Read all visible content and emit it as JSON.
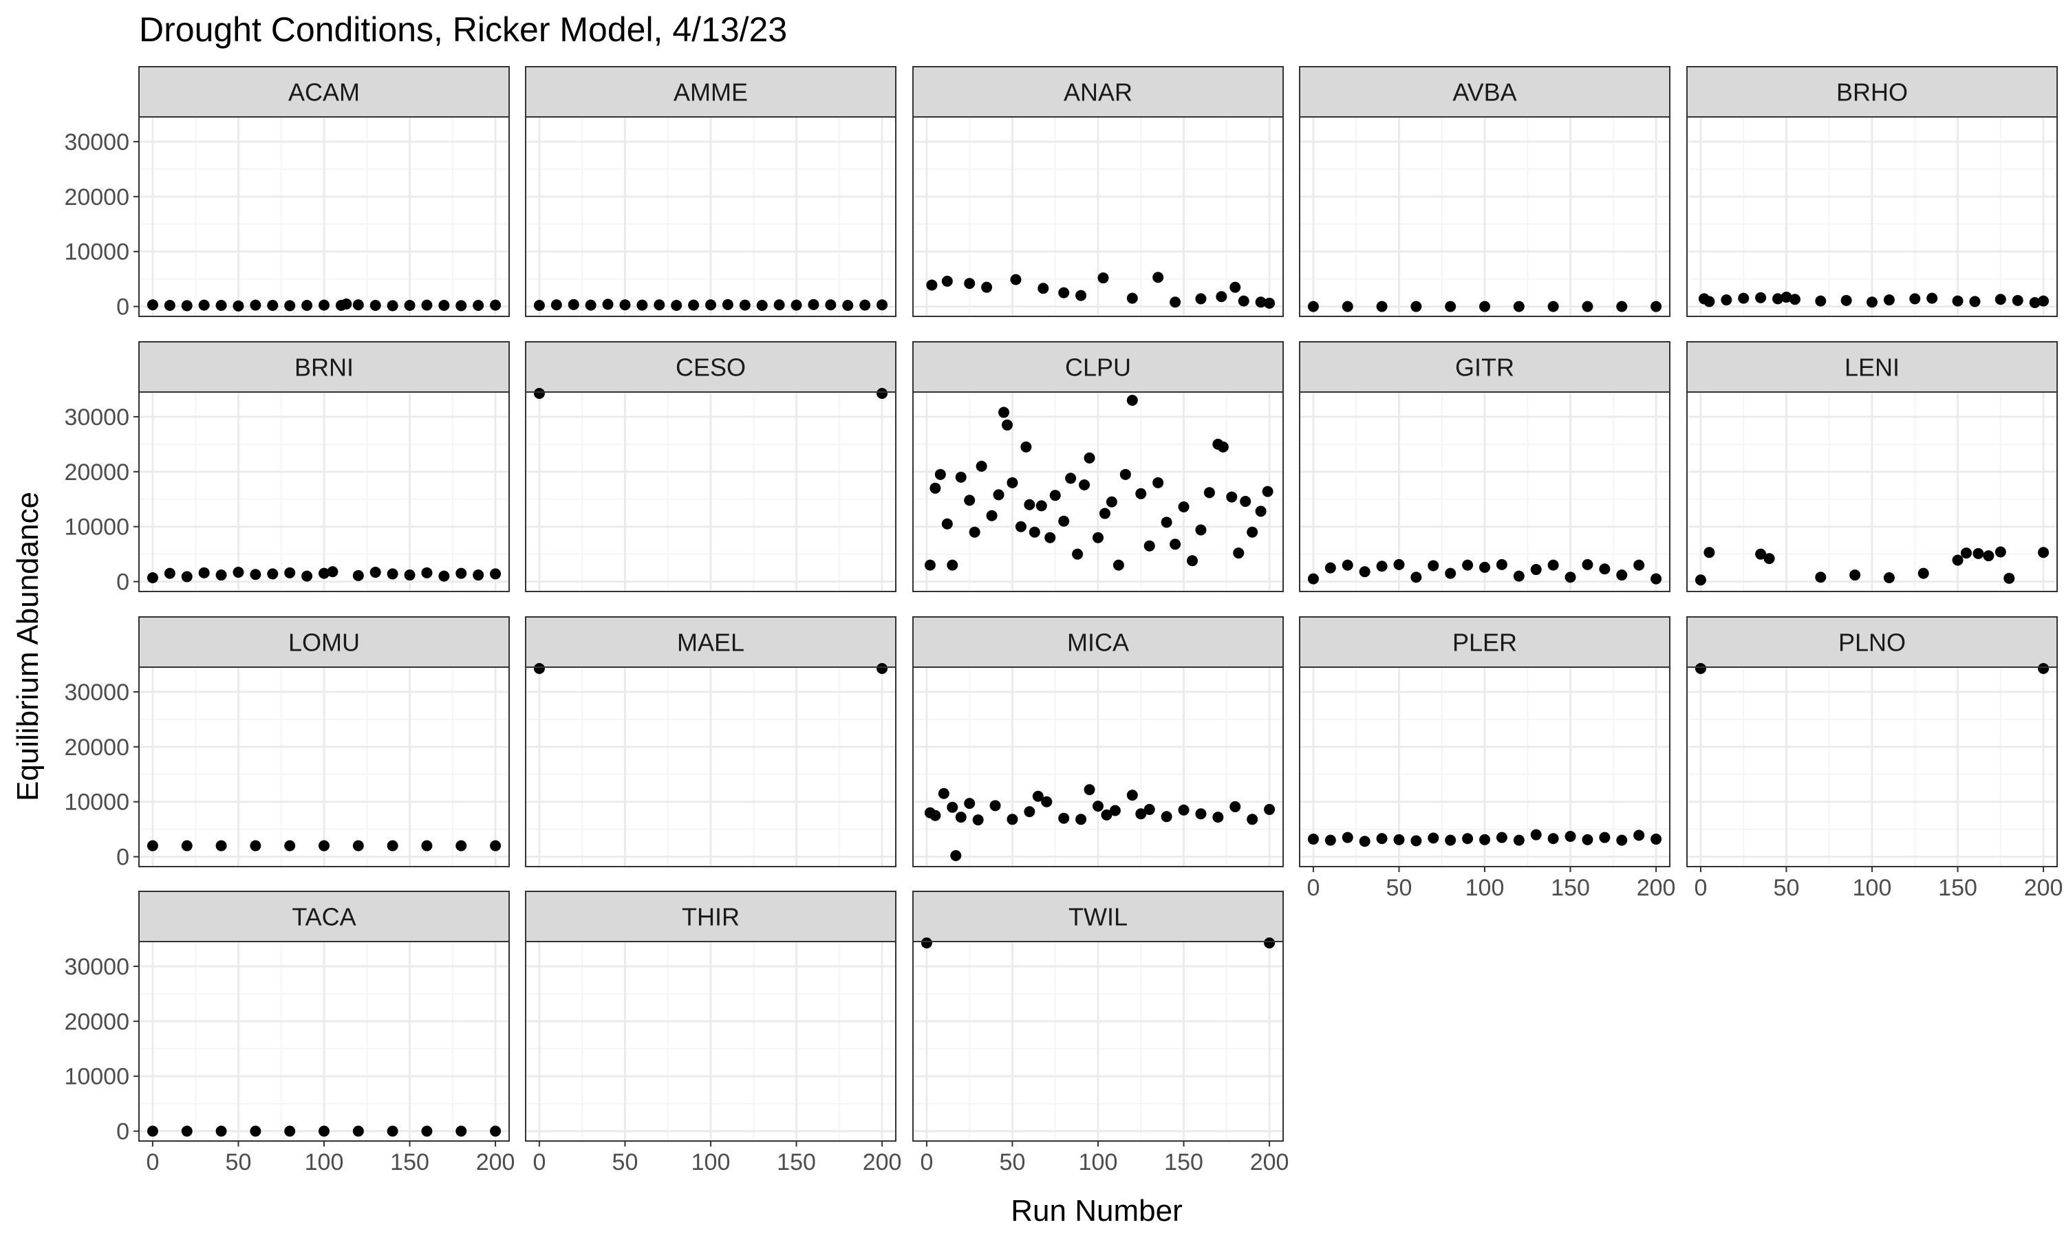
{
  "chart_data": {
    "type": "scatter",
    "title": "Drought Conditions, Ricker Model, 4/13/23",
    "xlabel": "Run Number",
    "ylabel": "Equilibrium Abundance",
    "xlim": [
      -8,
      208
    ],
    "ylim": [
      -1800,
      34500
    ],
    "x_ticks": [
      0,
      50,
      100,
      150,
      200
    ],
    "x_tick_labels": [
      "0",
      "50",
      "100",
      "150",
      "200"
    ],
    "y_ticks": [
      0,
      10000,
      20000,
      30000
    ],
    "y_tick_labels": [
      "0",
      "10000",
      "20000",
      "30000"
    ],
    "grid": true,
    "facet_layout": {
      "ncol": 5,
      "nrow": 4
    },
    "colors": {
      "point": "#000000",
      "strip_fill": "#d9d9d9",
      "panel_border": "#333333",
      "grid_major": "#ebebeb",
      "grid_minor": "#f5f5f5"
    },
    "panels": [
      {
        "label": "ACAM",
        "x": [
          0,
          10,
          20,
          30,
          40,
          50,
          60,
          70,
          80,
          90,
          100,
          110,
          113,
          120,
          130,
          140,
          150,
          160,
          170,
          180,
          190,
          200
        ],
        "y": [
          300,
          200,
          150,
          250,
          200,
          100,
          250,
          200,
          150,
          200,
          250,
          200,
          450,
          300,
          200,
          150,
          200,
          250,
          200,
          150,
          200,
          250
        ]
      },
      {
        "label": "AMME",
        "x": [
          0,
          10,
          20,
          30,
          40,
          50,
          60,
          70,
          80,
          90,
          100,
          110,
          120,
          130,
          140,
          150,
          160,
          170,
          180,
          190,
          200
        ],
        "y": [
          200,
          300,
          350,
          250,
          400,
          300,
          250,
          300,
          200,
          250,
          300,
          350,
          250,
          200,
          300,
          250,
          350,
          300,
          200,
          250,
          300
        ]
      },
      {
        "label": "ANAR",
        "x": [
          3,
          12,
          25,
          35,
          52,
          68,
          80,
          90,
          103,
          120,
          135,
          145,
          160,
          172,
          180,
          185,
          195,
          200
        ],
        "y": [
          3900,
          4600,
          4200,
          3500,
          4900,
          3300,
          2500,
          2000,
          5200,
          1500,
          5300,
          800,
          1400,
          1800,
          3500,
          1000,
          800,
          600
        ]
      },
      {
        "label": "AVBA",
        "x": [
          0,
          20,
          40,
          60,
          80,
          100,
          120,
          140,
          160,
          180,
          200
        ],
        "y": [
          0,
          0,
          0,
          0,
          0,
          0,
          0,
          0,
          0,
          0,
          0
        ]
      },
      {
        "label": "BRHO",
        "x": [
          2,
          5,
          15,
          25,
          35,
          45,
          50,
          55,
          70,
          85,
          100,
          110,
          125,
          135,
          150,
          160,
          175,
          185,
          195,
          200
        ],
        "y": [
          1400,
          900,
          1200,
          1500,
          1600,
          1400,
          1700,
          1300,
          1000,
          1100,
          800,
          1200,
          1400,
          1500,
          1000,
          900,
          1300,
          1100,
          700,
          1000
        ]
      },
      {
        "label": "BRNI",
        "x": [
          0,
          10,
          20,
          30,
          40,
          50,
          60,
          70,
          80,
          90,
          100,
          105,
          120,
          130,
          140,
          150,
          160,
          170,
          180,
          190,
          200
        ],
        "y": [
          700,
          1500,
          900,
          1600,
          1200,
          1700,
          1300,
          1400,
          1600,
          1000,
          1500,
          1800,
          1100,
          1700,
          1400,
          1200,
          1600,
          1000,
          1500,
          1200,
          1400
        ]
      },
      {
        "label": "CESO",
        "x": [
          0,
          200
        ],
        "y": [
          34400,
          34400
        ]
      },
      {
        "label": "CLPU",
        "x": [
          2,
          5,
          8,
          12,
          15,
          20,
          25,
          28,
          32,
          38,
          42,
          45,
          47,
          50,
          55,
          58,
          60,
          63,
          67,
          72,
          75,
          80,
          84,
          88,
          92,
          95,
          100,
          104,
          108,
          112,
          116,
          120,
          125,
          130,
          135,
          140,
          145,
          150,
          155,
          160,
          165,
          170,
          173,
          178,
          182,
          186,
          190,
          195,
          199
        ],
        "y": [
          3000,
          17000,
          19500,
          10500,
          3000,
          19000,
          14800,
          9000,
          21000,
          12000,
          15800,
          30800,
          28500,
          18000,
          10000,
          24500,
          14000,
          9000,
          13800,
          8000,
          15700,
          11000,
          18800,
          5000,
          17600,
          22500,
          8000,
          12400,
          14500,
          3000,
          19500,
          33000,
          16000,
          6500,
          18000,
          10800,
          6800,
          13600,
          3800,
          9400,
          16200,
          25000,
          24500,
          15400,
          5200,
          14600,
          9000,
          12800,
          16400
        ]
      },
      {
        "label": "GITR",
        "x": [
          0,
          10,
          20,
          30,
          40,
          50,
          60,
          70,
          80,
          90,
          100,
          110,
          120,
          130,
          140,
          150,
          160,
          170,
          180,
          190,
          200
        ],
        "y": [
          500,
          2500,
          3000,
          1800,
          2800,
          3100,
          800,
          2900,
          1500,
          3000,
          2600,
          3100,
          1000,
          2200,
          3000,
          800,
          3100,
          2300,
          1200,
          3000,
          500
        ]
      },
      {
        "label": "LENI",
        "x": [
          0,
          5,
          35,
          40,
          70,
          90,
          110,
          130,
          150,
          155,
          162,
          168,
          175,
          180,
          200
        ],
        "y": [
          300,
          5300,
          5000,
          4200,
          800,
          1200,
          700,
          1500,
          3900,
          5200,
          5100,
          4700,
          5400,
          600,
          5300
        ]
      },
      {
        "label": "LOMU",
        "x": [
          0,
          20,
          40,
          60,
          80,
          100,
          120,
          140,
          160,
          180,
          200
        ],
        "y": [
          2000,
          2000,
          2000,
          2000,
          2000,
          2000,
          2000,
          2000,
          2000,
          2000,
          2000
        ]
      },
      {
        "label": "MAEL",
        "x": [
          0,
          200
        ],
        "y": [
          34400,
          34400
        ]
      },
      {
        "label": "MICA",
        "x": [
          2,
          5,
          10,
          15,
          17,
          20,
          25,
          30,
          40,
          50,
          60,
          65,
          70,
          80,
          90,
          95,
          100,
          105,
          110,
          120,
          125,
          130,
          140,
          150,
          160,
          170,
          180,
          190,
          200
        ],
        "y": [
          8000,
          7500,
          11500,
          9000,
          200,
          7200,
          9700,
          6700,
          9300,
          6800,
          8200,
          11000,
          10000,
          7000,
          6800,
          12200,
          9200,
          7600,
          8400,
          11200,
          7800,
          8600,
          7300,
          8500,
          7800,
          7200,
          9100,
          6800,
          8600
        ]
      },
      {
        "label": "PLER",
        "x": [
          0,
          10,
          20,
          30,
          40,
          50,
          60,
          70,
          80,
          90,
          100,
          110,
          120,
          130,
          140,
          150,
          160,
          170,
          180,
          190,
          200
        ],
        "y": [
          3200,
          3000,
          3500,
          2800,
          3300,
          3100,
          2900,
          3400,
          3000,
          3300,
          3100,
          3500,
          3000,
          4000,
          3300,
          3700,
          3100,
          3500,
          3000,
          3900,
          3200
        ]
      },
      {
        "label": "PLNO",
        "x": [
          0,
          200
        ],
        "y": [
          34400,
          34400
        ]
      },
      {
        "label": "TACA",
        "x": [
          0,
          20,
          40,
          60,
          80,
          100,
          120,
          140,
          160,
          180,
          200
        ],
        "y": [
          0,
          0,
          0,
          0,
          0,
          0,
          0,
          0,
          0,
          0,
          0
        ]
      },
      {
        "label": "THIR",
        "x": [],
        "y": []
      },
      {
        "label": "TWIL",
        "x": [
          0,
          200
        ],
        "y": [
          34400,
          34400
        ]
      }
    ]
  }
}
